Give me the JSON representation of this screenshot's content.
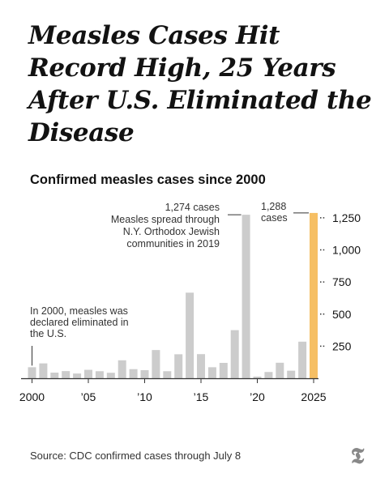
{
  "headline": "Measles Cases Hit Record High, 25 Years After U.S. Eliminated the Disease",
  "source": "Source: CDC confirmed cases through July 8",
  "colors": {
    "bar": "#cccccc",
    "highlight": "#f6bf64",
    "axis": "#333333",
    "text": "#121212"
  },
  "chart_data": {
    "type": "bar",
    "title": "Confirmed measles cases since 2000",
    "xlabel": "",
    "ylabel": "",
    "categories": [
      2000,
      2001,
      2002,
      2003,
      2004,
      2005,
      2006,
      2007,
      2008,
      2009,
      2010,
      2011,
      2012,
      2013,
      2014,
      2015,
      2016,
      2017,
      2018,
      2019,
      2020,
      2021,
      2022,
      2023,
      2024,
      2025
    ],
    "values": [
      86,
      116,
      44,
      56,
      37,
      66,
      55,
      43,
      140,
      71,
      63,
      220,
      55,
      187,
      667,
      188,
      86,
      120,
      375,
      1274,
      13,
      49,
      121,
      59,
      285,
      1288
    ],
    "highlight_category": 2025,
    "ylim": [
      0,
      1300
    ],
    "y_ticks": [
      250,
      500,
      750,
      1000,
      1250
    ],
    "y_tick_labels": [
      "250",
      "500",
      "750",
      "1,000",
      "1,250"
    ],
    "x_ticks": [
      2000,
      2005,
      2010,
      2015,
      2020,
      2025
    ],
    "x_tick_labels": [
      "2000",
      "’05",
      "’10",
      "’15",
      "’20",
      "2025"
    ],
    "grid": false,
    "legend": "none",
    "annotations": [
      {
        "year": 2000,
        "lines": [
          "In 2000, measles was",
          "declared eliminated in",
          "the U.S."
        ]
      },
      {
        "year": 2019,
        "lines": [
          "1,274 cases",
          "Measles spread through",
          "N.Y. Orthodox Jewish",
          "communities in 2019"
        ]
      },
      {
        "year": 2025,
        "lines": [
          "1,288",
          "cases"
        ]
      }
    ]
  }
}
